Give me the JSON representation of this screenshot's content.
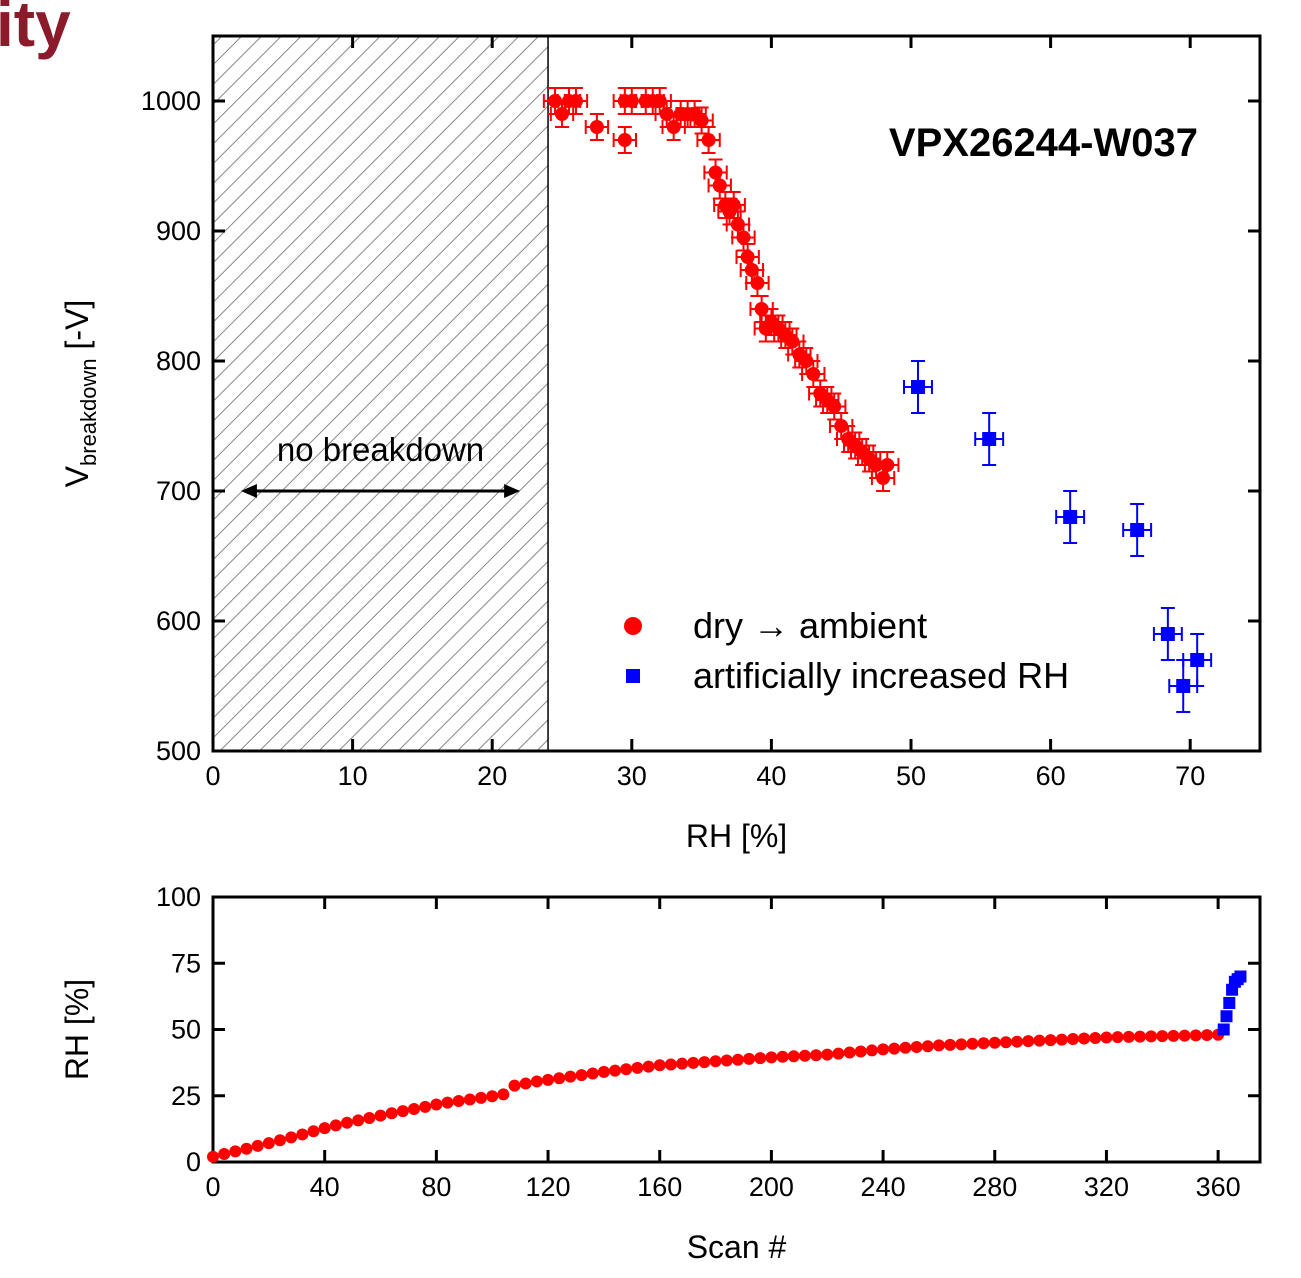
{
  "header": {
    "title": "ity"
  },
  "chart_data": [
    {
      "type": "scatter",
      "xlabel": "RH [%]",
      "ylabel": [
        "V",
        "breakdown",
        " [-V]"
      ],
      "label": "VPX26244-W037",
      "xlim": [
        0,
        75
      ],
      "ylim": [
        500,
        1050
      ],
      "xticks": [
        0,
        10,
        20,
        30,
        40,
        50,
        60,
        70
      ],
      "yticks": [
        500,
        600,
        700,
        800,
        900,
        1000
      ],
      "hatched_region": [
        0,
        24
      ],
      "annotation": {
        "text": "no breakdown",
        "x": [
          2,
          22
        ],
        "y": 700
      },
      "legend": "lower right",
      "series": [
        {
          "name": "dry → ambient",
          "color": "#ff0000",
          "marker": "circle",
          "xerr": 0.8,
          "yerr": 10,
          "x": [
            24.5,
            25,
            25.5,
            26,
            27.5,
            29.5,
            29.5,
            30,
            31,
            31.5,
            32,
            32.5,
            33,
            33.5,
            34,
            34.5,
            35,
            35.5,
            36,
            36.3,
            36.7,
            37,
            37.3,
            37.6,
            38,
            38.3,
            38.6,
            39,
            39.3,
            39.6,
            40,
            40.5,
            41,
            41.5,
            42,
            42.5,
            43,
            43.5,
            44,
            44.5,
            45,
            45.5,
            46,
            46.5,
            47,
            47.5,
            48,
            48.3
          ],
          "values": [
            1000,
            990,
            1000,
            1000,
            980,
            970,
            1000,
            1000,
            1000,
            1000,
            1000,
            990,
            980,
            990,
            990,
            990,
            985,
            970,
            945,
            935,
            920,
            915,
            920,
            905,
            895,
            880,
            870,
            860,
            840,
            825,
            830,
            825,
            820,
            815,
            805,
            800,
            790,
            775,
            770,
            765,
            750,
            740,
            735,
            730,
            725,
            720,
            710,
            720
          ]
        },
        {
          "name": "artificially increased RH",
          "color": "#0000ff",
          "marker": "square",
          "xerr": 1,
          "yerr": 20,
          "x": [
            50.5,
            55.6,
            61.4,
            66.2,
            68.4,
            69.5,
            70.5
          ],
          "values": [
            780,
            740,
            680,
            670,
            590,
            550,
            570
          ]
        }
      ]
    },
    {
      "type": "scatter",
      "xlabel": "Scan #",
      "ylabel": [
        "RH [%]"
      ],
      "xlim": [
        0,
        375
      ],
      "ylim": [
        0,
        100
      ],
      "xticks": [
        0,
        40,
        80,
        120,
        160,
        200,
        240,
        280,
        320,
        360
      ],
      "yticks": [
        0,
        25,
        50,
        75,
        100
      ],
      "series": [
        {
          "color": "#ff0000",
          "marker": "circle",
          "x": [
            0,
            4,
            8,
            12,
            16,
            20,
            24,
            28,
            32,
            36,
            40,
            44,
            48,
            52,
            56,
            60,
            64,
            68,
            72,
            76,
            80,
            84,
            88,
            92,
            96,
            100,
            104,
            108,
            112,
            116,
            120,
            124,
            128,
            132,
            136,
            140,
            144,
            148,
            152,
            156,
            160,
            164,
            168,
            172,
            176,
            180,
            184,
            188,
            192,
            196,
            200,
            204,
            208,
            212,
            216,
            220,
            224,
            228,
            232,
            236,
            240,
            244,
            248,
            252,
            256,
            260,
            264,
            268,
            272,
            276,
            280,
            284,
            288,
            292,
            296,
            300,
            304,
            308,
            312,
            316,
            320,
            324,
            328,
            332,
            336,
            340,
            344,
            348,
            352,
            356,
            360
          ],
          "values": [
            2,
            3,
            4,
            5,
            6.1,
            7.1,
            8.2,
            9.3,
            10.4,
            11.6,
            12.8,
            13.8,
            14.8,
            15.7,
            16.6,
            17.5,
            18.4,
            19.2,
            20,
            20.8,
            21.7,
            22.4,
            23,
            23.6,
            24.2,
            24.8,
            25.5,
            28.8,
            29.6,
            30.4,
            31,
            31.6,
            32.2,
            32.8,
            33.4,
            34,
            34.5,
            35,
            35.5,
            36,
            36.5,
            36.8,
            37.1,
            37.4,
            37.7,
            38,
            38.3,
            38.6,
            38.9,
            39.2,
            39.5,
            39.7,
            39.9,
            40.1,
            40.3,
            40.5,
            40.9,
            41.3,
            41.7,
            42.1,
            42.5,
            42.8,
            43.1,
            43.4,
            43.7,
            44,
            44.2,
            44.4,
            44.6,
            44.8,
            45,
            45.2,
            45.4,
            45.6,
            45.8,
            46,
            46.2,
            46.4,
            46.6,
            46.8,
            47,
            47.1,
            47.2,
            47.3,
            47.4,
            47.5,
            47.6,
            47.7,
            47.8,
            47.9,
            48
          ]
        },
        {
          "color": "#0000ff",
          "marker": "square",
          "x": [
            362,
            363,
            364,
            365,
            366,
            367,
            368
          ],
          "values": [
            50,
            55,
            60,
            65,
            68,
            69,
            70
          ]
        }
      ]
    }
  ]
}
